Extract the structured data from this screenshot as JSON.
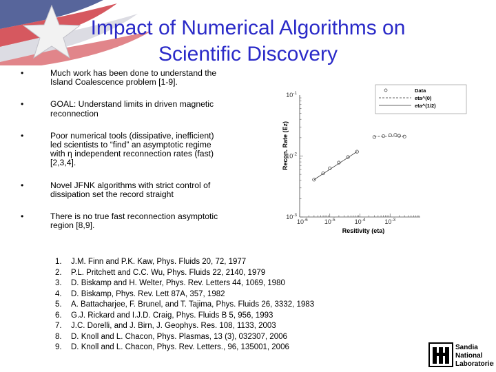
{
  "slide": {
    "title_line1": "Impact of Numerical Algorithms on",
    "title_line2": "Scientific Discovery",
    "bullet_marker": "•",
    "bullets": [
      "Much work has been done to understand the Island Coalescence problem [1-9].",
      "GOAL: Understand limits in driven magnetic reconnection",
      "Poor numerical tools (dissipative, inefficient) led scientists to “find” an asymptotic regime with η independent reconnection rates (fast) [2,3,4].",
      "Novel JFNK algorithms with strict control of dissipation set the record straight",
      "There is no true fast reconnection asymptotic region [8,9]."
    ],
    "references": [
      {
        "num": "1.",
        "text": "J.M. Finn and P.K. Kaw, Phys. Fluids 20, 72, 1977"
      },
      {
        "num": "2.",
        "text": "P.L. Pritchett and C.C. Wu, Phys. Fluids 22, 2140, 1979"
      },
      {
        "num": "3.",
        "text": "D. Biskamp and H. Welter, Phys. Rev. Letters 44, 1069, 1980"
      },
      {
        "num": "4.",
        "text": "D. Biskamp, Phys. Rev. Lett 87A, 357, 1982"
      },
      {
        "num": "5.",
        "text": "A. Battacharjee, F. Brunel, and T. Tajima, Phys. Fluids 26, 3332, 1983"
      },
      {
        "num": "6.",
        "text": "G.J. Rickard and I.J.D. Craig, Phys. Fluids B 5, 956, 1993"
      },
      {
        "num": "7.",
        "text": "J.C. Dorelli, and J. Birn, J. Geophys. Res. 108, 1133, 2003"
      },
      {
        "num": "8.",
        "text": "D. Knoll and L. Chacon, Phys. Plasmas, 13 (3), 032307, 2006"
      },
      {
        "num": "9.",
        "text": "D. Knoll and L. Chacon, Phys. Rev. Letters., 96, 135001, 2006"
      }
    ],
    "logo": {
      "line1": "Sandia",
      "line2": "National",
      "line3": "Laboratories"
    },
    "colors": {
      "title": "#2a2ac8",
      "flag_red": "#c8202a",
      "flag_blue": "#3a4a8a",
      "star": "#f2f2f2"
    }
  },
  "chart_data": {
    "type": "scatter",
    "xlabel": "Resitivity (eta)",
    "ylabel": "Recon. Rate (Ez)",
    "x_scale": "log",
    "y_scale": "log",
    "xlim": [
      1e-06,
      0.01
    ],
    "ylim": [
      0.001,
      0.1
    ],
    "x_ticks": [
      {
        "value": 1e-05,
        "base": "10",
        "exp": "-5"
      },
      {
        "value": 0.0001,
        "base": "10",
        "exp": "-4"
      },
      {
        "value": 0.001,
        "base": "10",
        "exp": "-3"
      }
    ],
    "x_edge_label": {
      "base": "10",
      "exp": "-6"
    },
    "y_ticks": [
      {
        "value": 0.1,
        "base": "10",
        "exp": "-1"
      },
      {
        "value": 0.01,
        "base": "10",
        "exp": "-2"
      },
      {
        "value": 0.001,
        "base": "10",
        "exp": "-3"
      }
    ],
    "legend_position": "top-right",
    "series": [
      {
        "name": "Data",
        "style": "circles",
        "x": [
          3e-06,
          6e-06,
          1e-05,
          2e-05,
          4e-05,
          8e-05,
          0.0003,
          0.0006,
          0.001,
          0.0015,
          0.002,
          0.003
        ],
        "y": [
          0.0041,
          0.0052,
          0.0063,
          0.0078,
          0.0096,
          0.0118,
          0.0205,
          0.0212,
          0.022,
          0.0222,
          0.0215,
          0.0208
        ]
      },
      {
        "name": "eta^(0)",
        "style": "dashed",
        "x": [
          0.0003,
          0.003
        ],
        "y": [
          0.021,
          0.021
        ]
      },
      {
        "name": "eta^(1/2)",
        "style": "solid",
        "x": [
          3e-06,
          8e-05
        ],
        "y": [
          0.0041,
          0.0118
        ]
      }
    ]
  }
}
